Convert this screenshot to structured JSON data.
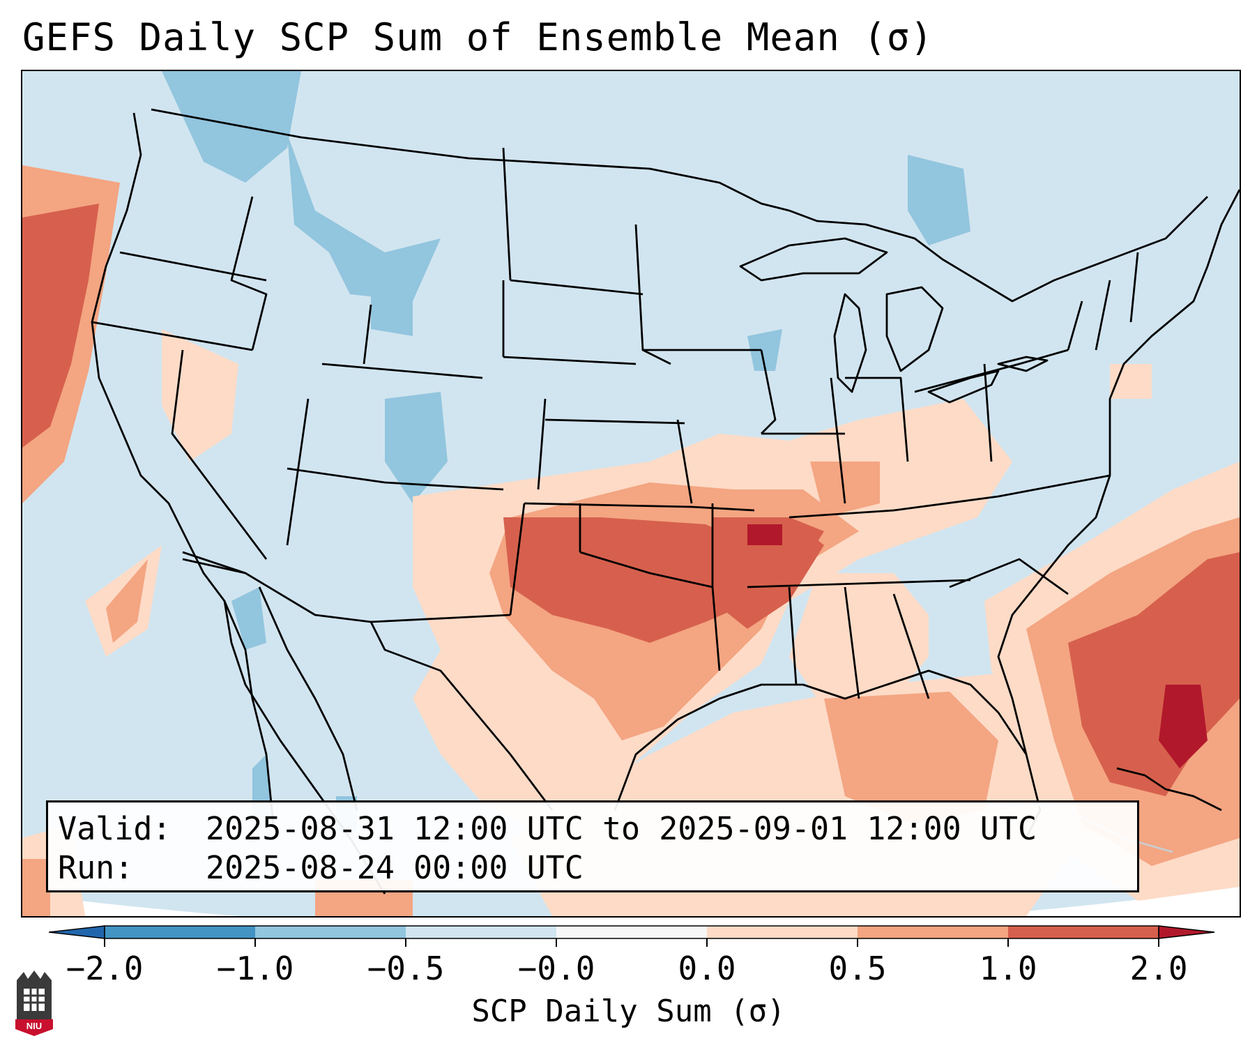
{
  "title": "GEFS Daily SCP Sum of Ensemble Mean (σ)",
  "info": {
    "valid_label": "Valid:",
    "valid_value": "2025-08-31 12:00 UTC to 2025-09-01 12:00 UTC",
    "run_label": "Run:",
    "run_value": "2025-08-24 00:00 UTC"
  },
  "colorbar": {
    "label": "SCP Daily Sum (σ)",
    "ticks": [
      "−2.0",
      "−1.0",
      "−0.5",
      "−0.0",
      "0.0",
      "0.5",
      "1.0",
      "2.0"
    ],
    "colors": [
      "#4393c3",
      "#92c5de",
      "#d1e5f0",
      "#fddbc7",
      "#f4a582",
      "#d6604d"
    ],
    "extend_low": "#2166ac",
    "extend_high": "#b2182b"
  },
  "map_colors": {
    "ocean_off_domain": "#ffffff",
    "neutral": "#d1e5f0",
    "low1": "#92c5de",
    "high1": "#fddbc7",
    "high2": "#f4a582",
    "high3": "#d6604d",
    "high4": "#b2182b"
  },
  "logo": {
    "text": "NIU"
  }
}
